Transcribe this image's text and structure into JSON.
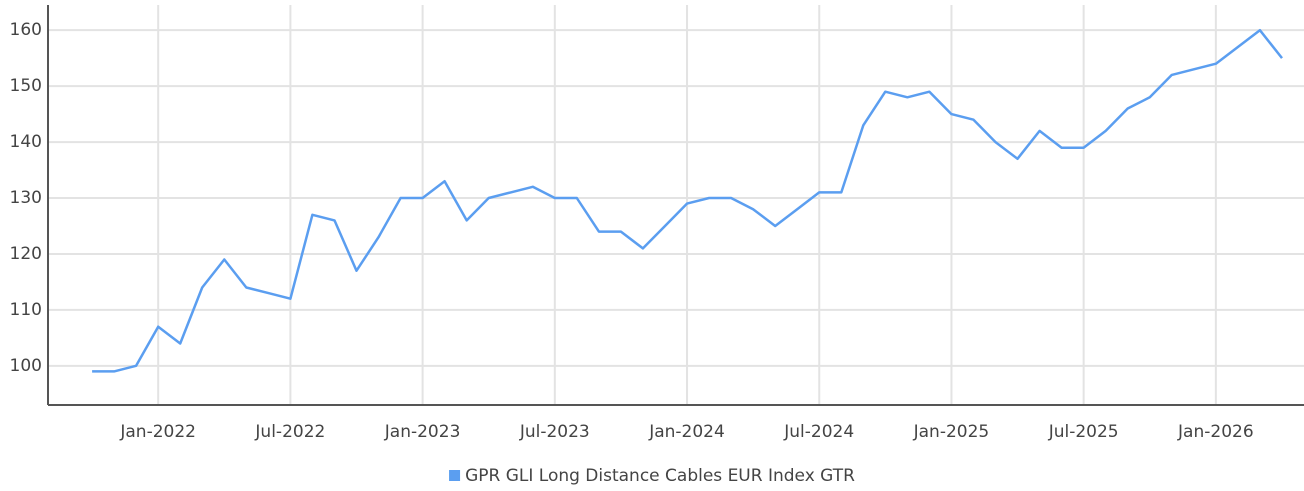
{
  "chart_data": {
    "type": "line",
    "x": [
      "2021-10",
      "2021-11",
      "2021-12",
      "2022-01",
      "2022-02",
      "2022-03",
      "2022-04",
      "2022-05",
      "2022-06",
      "2022-07",
      "2022-08",
      "2022-09",
      "2022-10",
      "2022-11",
      "2022-12",
      "2023-01",
      "2023-02",
      "2023-03",
      "2023-04",
      "2023-05",
      "2023-06",
      "2023-07",
      "2023-08",
      "2023-09",
      "2023-10",
      "2023-11",
      "2023-12",
      "2024-01",
      "2024-02",
      "2024-03",
      "2024-04",
      "2024-05",
      "2024-06",
      "2024-07",
      "2024-08",
      "2024-09",
      "2024-10",
      "2024-11",
      "2024-12",
      "2025-01",
      "2025-02",
      "2025-03",
      "2025-04",
      "2025-05",
      "2025-06",
      "2025-07",
      "2025-08",
      "2025-09",
      "2025-10",
      "2025-11",
      "2025-12",
      "2026-01",
      "2026-02",
      "2026-03",
      "2026-04"
    ],
    "series": [
      {
        "name": "GPR GLI Long Distance Cables EUR Index GTR",
        "color": "#5b9ef0",
        "values": [
          99,
          99,
          100,
          107,
          104,
          114,
          119,
          114,
          113,
          112,
          127,
          126,
          117,
          123,
          130,
          130,
          133,
          126,
          130,
          131,
          132,
          130,
          130,
          124,
          124,
          121,
          125,
          129,
          130,
          130,
          128,
          125,
          128,
          131,
          131,
          143,
          149,
          148,
          149,
          145,
          144,
          140,
          137,
          142,
          139,
          139,
          142,
          146,
          148,
          152,
          153,
          154,
          157,
          160,
          155
        ]
      }
    ],
    "xlim": [
      "2021-08",
      "2026-05"
    ],
    "xticks": [
      {
        "value": "2022-01",
        "label": "Jan-2022"
      },
      {
        "value": "2022-07",
        "label": "Jul-2022"
      },
      {
        "value": "2023-01",
        "label": "Jan-2023"
      },
      {
        "value": "2023-07",
        "label": "Jul-2023"
      },
      {
        "value": "2024-01",
        "label": "Jan-2024"
      },
      {
        "value": "2024-07",
        "label": "Jul-2024"
      },
      {
        "value": "2025-01",
        "label": "Jan-2025"
      },
      {
        "value": "2025-07",
        "label": "Jul-2025"
      },
      {
        "value": "2026-01",
        "label": "Jan-2026"
      }
    ],
    "ylim": [
      93,
      164.5
    ],
    "yticks": [
      100,
      110,
      120,
      130,
      140,
      150,
      160
    ],
    "grid": true,
    "legend": "bottom"
  }
}
